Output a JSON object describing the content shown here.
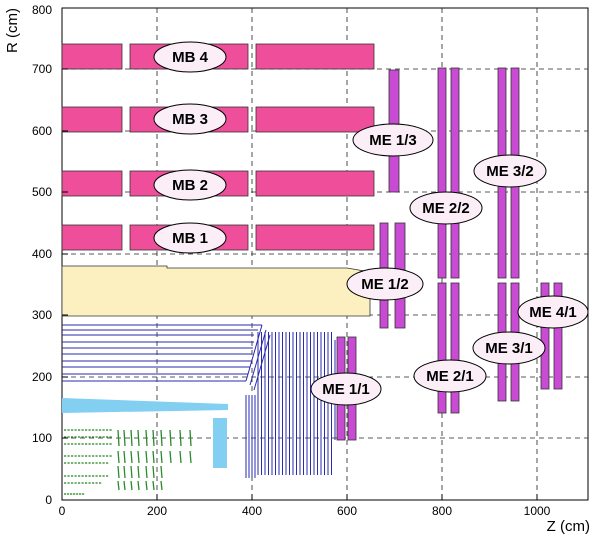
{
  "axes": {
    "x_title": "Z (cm)",
    "y_title": "R (cm)",
    "x_range": [
      0,
      1130
    ],
    "y_range": [
      0,
      800
    ],
    "x_ticks": [
      "0",
      "200",
      "400",
      "600",
      "800",
      "1000"
    ],
    "y_ticks": [
      "0",
      "100",
      "200",
      "300",
      "400",
      "500",
      "600",
      "700",
      "800"
    ],
    "grid": true
  },
  "colors": {
    "barrel_chamber": "#ef4f9a",
    "endcap_chamber": "#c94bd4",
    "calorimeter": "#fdf0c0",
    "silicon": "#82cff2",
    "tracker_lines": "#2a2ab0",
    "inner_tracker": "#2a8a2a",
    "label_fill": "#fbeef6"
  },
  "labels": {
    "mb4": "MB 4",
    "mb3": "MB 3",
    "mb2": "MB 2",
    "mb1": "MB 1",
    "me13": "ME 1/3",
    "me12": "ME 1/2",
    "me11": "ME 1/1",
    "me22": "ME 2/2",
    "me21": "ME 2/1",
    "me32": "ME 3/2",
    "me31": "ME 3/1",
    "me41": "ME 4/1"
  }
}
